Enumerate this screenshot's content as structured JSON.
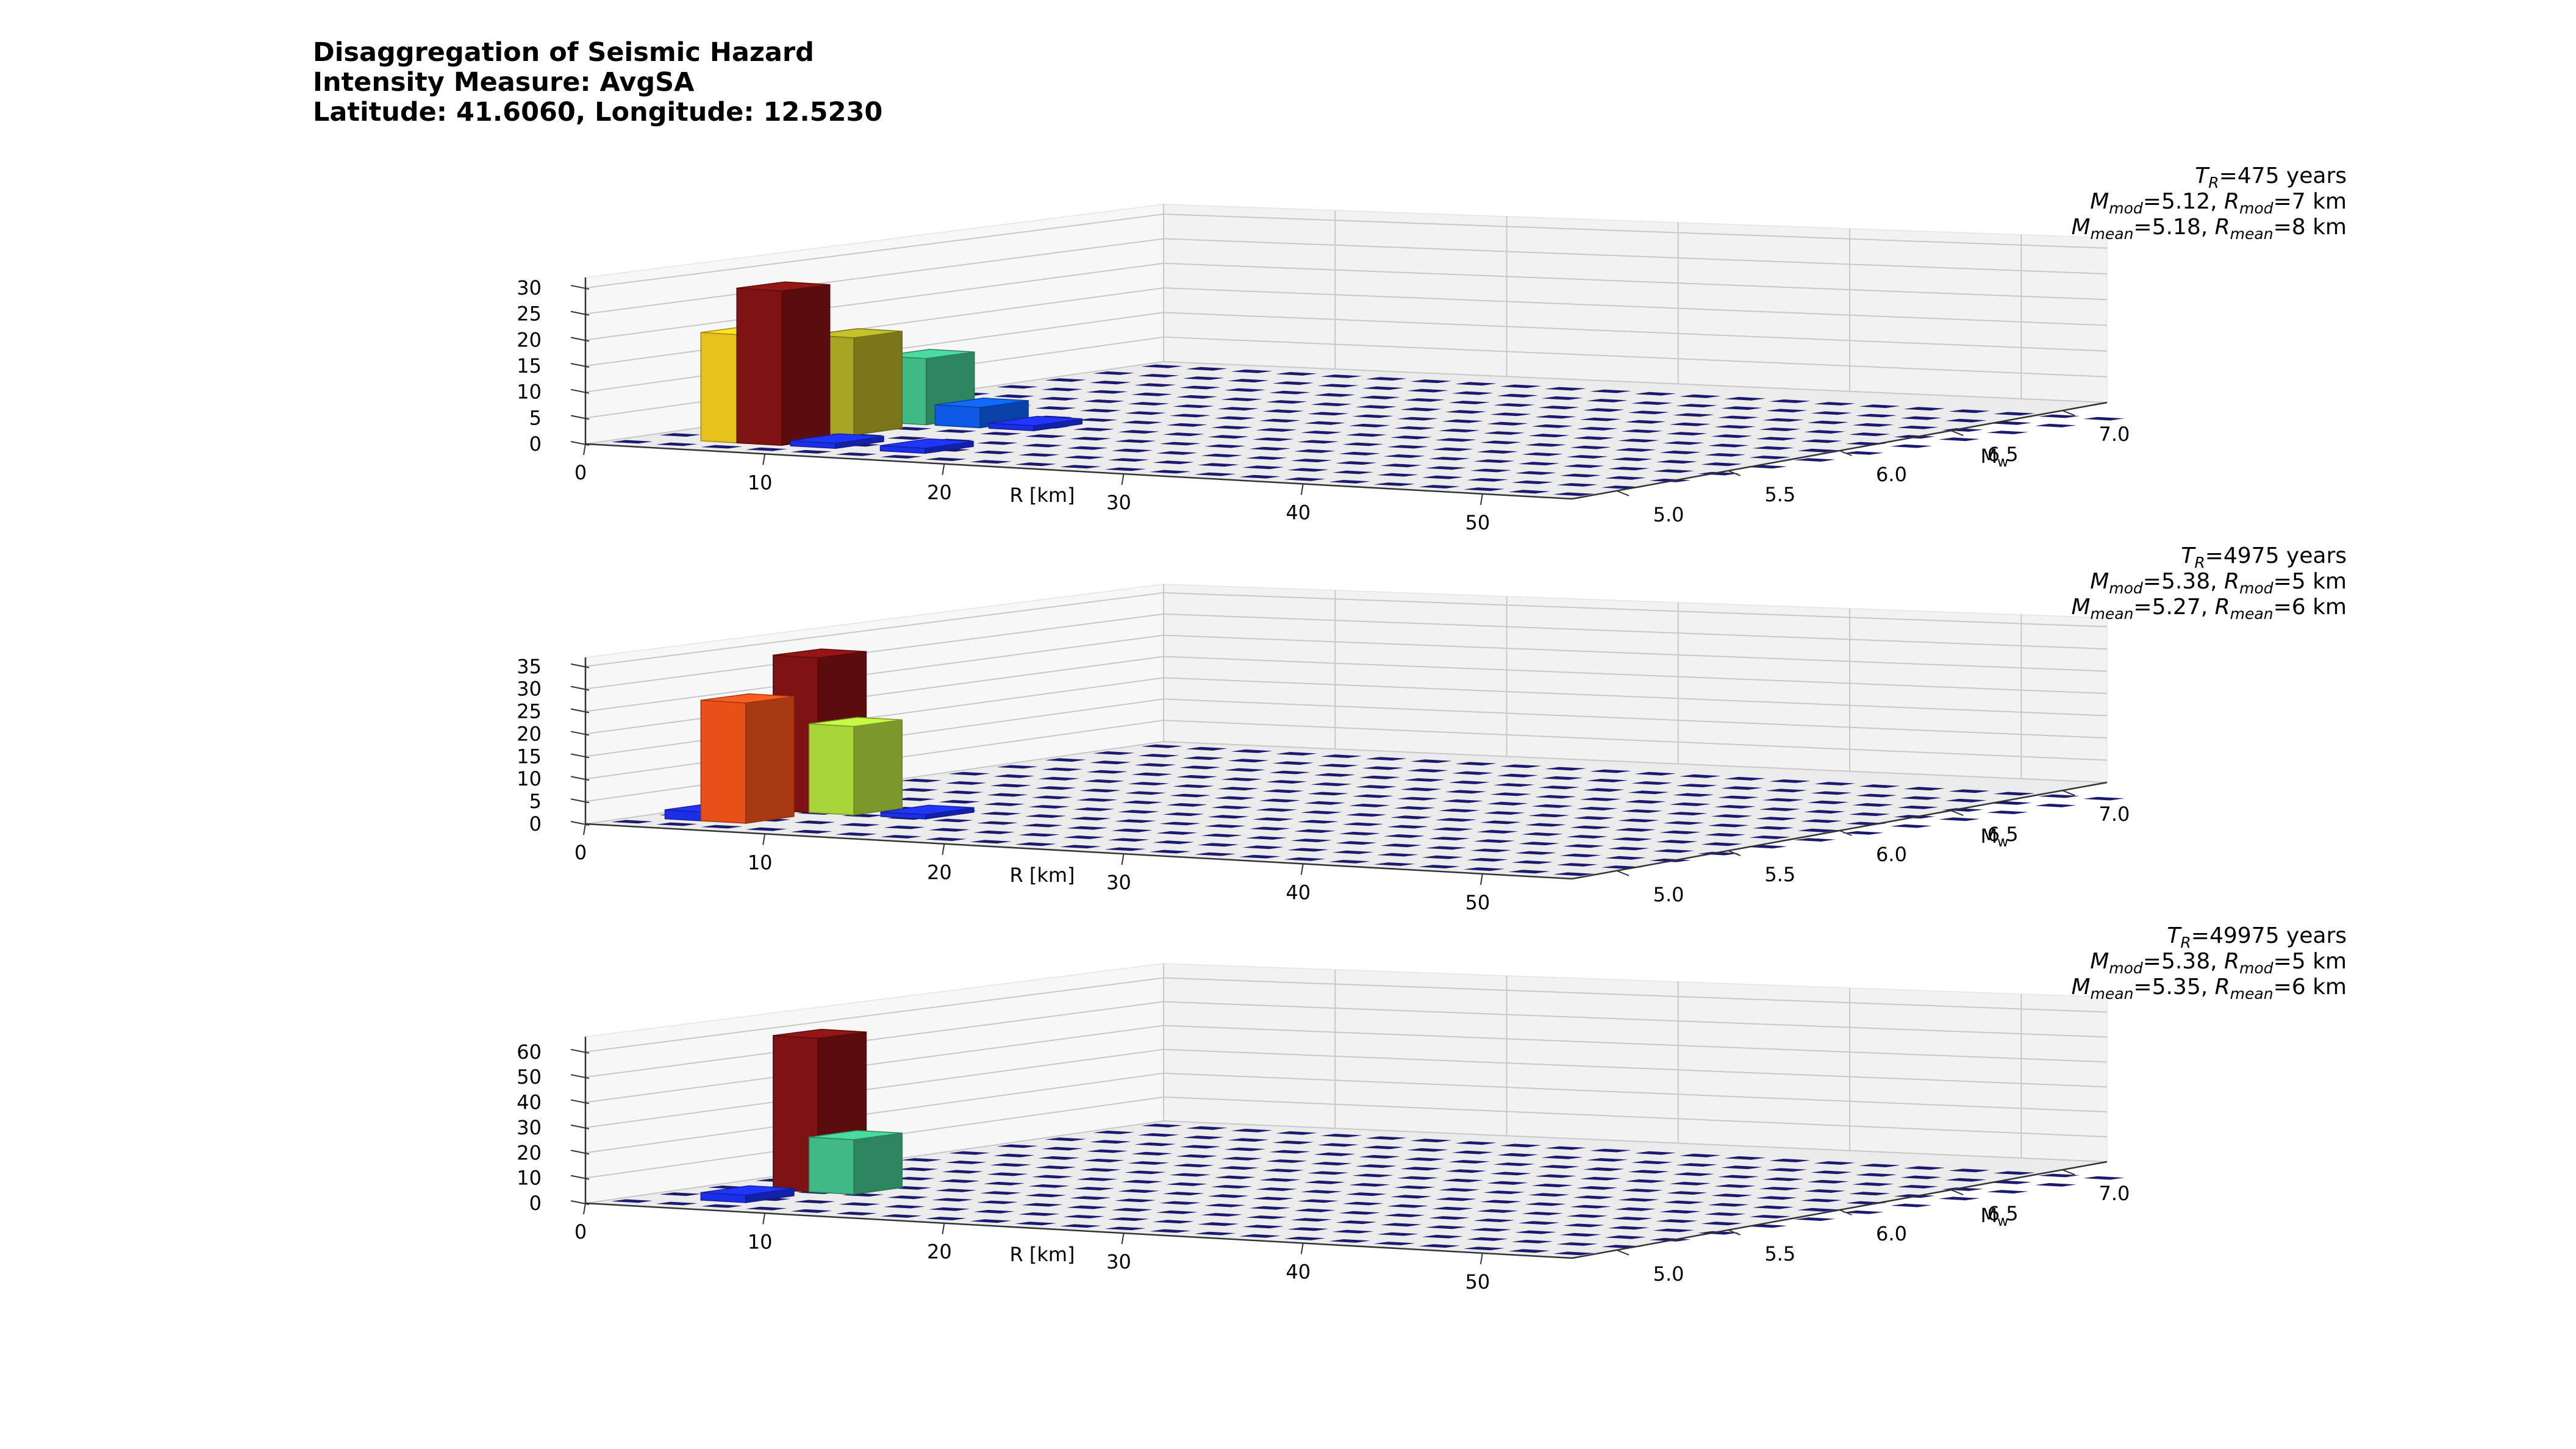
{
  "title": {
    "line1": "Disaggregation of Seismic Hazard",
    "line2": "Intensity Measure: AvgSA",
    "line3": "Latitude: 41.6060, Longitude: 12.5230"
  },
  "chart_data": [
    {
      "type": "bar3d",
      "xlabel": "R [km]",
      "ylabel": "M",
      "ylabel_sub": "w",
      "x_ticks": [
        0,
        10,
        20,
        30,
        40,
        50
      ],
      "y_ticks": [
        "5.0",
        "5.5",
        "6.0",
        "6.5",
        "7.0"
      ],
      "z_ticks": [
        0,
        5,
        10,
        15,
        20,
        25,
        30
      ],
      "xlim": [
        0,
        55
      ],
      "ylim": [
        4.8,
        7.2
      ],
      "zlim": [
        0,
        32
      ],
      "info": {
        "return_period": "=475 years",
        "modal": {
          "m": "=5.12, ",
          "r": "=7 km"
        },
        "mean": {
          "m": "=5.18, ",
          "r": "=8 km"
        }
      },
      "bars": [
        {
          "r": 5,
          "m": 5.1,
          "value": 21,
          "color": "#e7c11b"
        },
        {
          "r": 7,
          "m": 5.1,
          "value": 30,
          "color": "#7f1212"
        },
        {
          "r": 7,
          "m": 5.4,
          "value": 19,
          "color": "#a8a524"
        },
        {
          "r": 7,
          "m": 5.7,
          "value": 13,
          "color": "#3fba86"
        },
        {
          "r": 10,
          "m": 5.1,
          "value": 1,
          "color": "#1b2ee8"
        },
        {
          "r": 10,
          "m": 5.7,
          "value": 4,
          "color": "#0e5ae6"
        },
        {
          "r": 15,
          "m": 5.1,
          "value": 1,
          "color": "#1b2ee8"
        },
        {
          "r": 13,
          "m": 5.7,
          "value": 1,
          "color": "#1b2ee8"
        }
      ]
    },
    {
      "type": "bar3d",
      "xlabel": "R [km]",
      "ylabel": "M",
      "ylabel_sub": "w",
      "x_ticks": [
        0,
        10,
        20,
        30,
        40,
        50
      ],
      "y_ticks": [
        "5.0",
        "5.5",
        "6.0",
        "6.5",
        "7.0"
      ],
      "z_ticks": [
        0,
        5,
        10,
        15,
        20,
        25,
        30,
        35
      ],
      "xlim": [
        0,
        55
      ],
      "ylim": [
        4.8,
        7.2
      ],
      "zlim": [
        0,
        37
      ],
      "info": {
        "return_period": "=4975 years",
        "modal": {
          "m": "=5.38, ",
          "r": "=5 km"
        },
        "mean": {
          "m": "=5.27, ",
          "r": "=6 km"
        }
      },
      "bars": [
        {
          "r": 3,
          "m": 5.1,
          "value": 2,
          "color": "#1b2ee8"
        },
        {
          "r": 5,
          "m": 5.4,
          "value": 35,
          "color": "#7f1212"
        },
        {
          "r": 5,
          "m": 5.1,
          "value": 27,
          "color": "#e8501a"
        },
        {
          "r": 7,
          "m": 5.4,
          "value": 20,
          "color": "#a9d43a"
        },
        {
          "r": 11,
          "m": 5.4,
          "value": 1,
          "color": "#1b2ee8"
        }
      ]
    },
    {
      "type": "bar3d",
      "xlabel": "R [km]",
      "ylabel": "M",
      "ylabel_sub": "w",
      "x_ticks": [
        0,
        10,
        20,
        30,
        40,
        50
      ],
      "y_ticks": [
        "5.0",
        "5.5",
        "6.0",
        "6.5",
        "7.0"
      ],
      "z_ticks": [
        0,
        10,
        20,
        30,
        40,
        50,
        60
      ],
      "xlim": [
        0,
        55
      ],
      "ylim": [
        4.8,
        7.2
      ],
      "zlim": [
        0,
        66
      ],
      "info": {
        "return_period": "=49975 years",
        "modal": {
          "m": "=5.38, ",
          "r": "=5 km"
        },
        "mean": {
          "m": "=5.35, ",
          "r": "=6 km"
        }
      },
      "bars": [
        {
          "r": 5,
          "m": 5.1,
          "value": 3,
          "color": "#1b2ee8"
        },
        {
          "r": 5,
          "m": 5.4,
          "value": 62,
          "color": "#7f1212"
        },
        {
          "r": 7,
          "m": 5.4,
          "value": 22,
          "color": "#3fba86"
        }
      ]
    }
  ]
}
